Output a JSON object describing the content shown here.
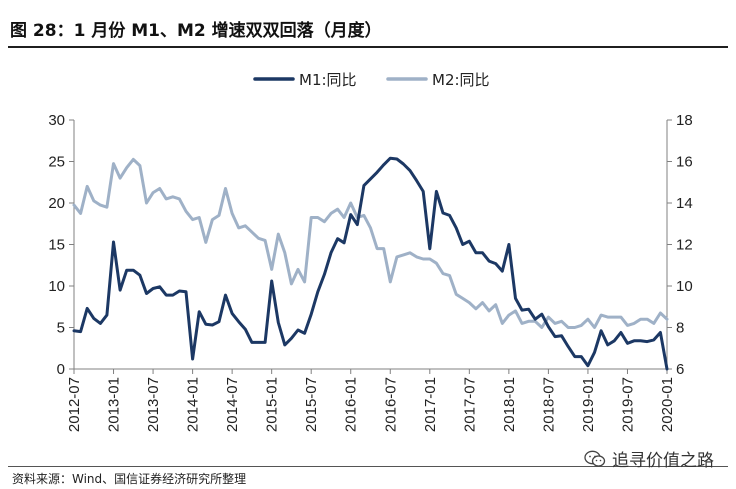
{
  "header": {
    "title": "图 28：1 月份 M1、M2 增速双双回落（月度）"
  },
  "footer": {
    "source": "资料来源：Wind、国信证券经济研究所整理",
    "watermark": "追寻价值之路"
  },
  "colors": {
    "m1": "#1c3864",
    "m2": "#9fb1c7",
    "axis": "#808080"
  },
  "icons": {
    "watermark": "wechat-icon"
  },
  "chart_data": {
    "type": "line",
    "title": "",
    "xlabel": "",
    "ylabel": "",
    "ylabel_right": "",
    "left_axis": {
      "ylim": [
        0,
        30
      ],
      "ticks": [
        0,
        5,
        10,
        15,
        20,
        25,
        30
      ]
    },
    "right_axis": {
      "ylim": [
        6,
        18
      ],
      "ticks": [
        6,
        8,
        10,
        12,
        14,
        16,
        18
      ]
    },
    "x_tick_labels": [
      "2012-07",
      "2013-01",
      "2013-07",
      "2014-01",
      "2014-07",
      "2015-01",
      "2015-07",
      "2016-01",
      "2016-07",
      "2017-01",
      "2017-07",
      "2018-01",
      "2018-07",
      "2019-01",
      "2019-07",
      "2020-01"
    ],
    "grid": false,
    "legend_position": "top-center",
    "x_months": [
      "2012-07",
      "2012-08",
      "2012-09",
      "2012-10",
      "2012-11",
      "2012-12",
      "2013-01",
      "2013-02",
      "2013-03",
      "2013-04",
      "2013-05",
      "2013-06",
      "2013-07",
      "2013-08",
      "2013-09",
      "2013-10",
      "2013-11",
      "2013-12",
      "2014-01",
      "2014-02",
      "2014-03",
      "2014-04",
      "2014-05",
      "2014-06",
      "2014-07",
      "2014-08",
      "2014-09",
      "2014-10",
      "2014-11",
      "2014-12",
      "2015-01",
      "2015-02",
      "2015-03",
      "2015-04",
      "2015-05",
      "2015-06",
      "2015-07",
      "2015-08",
      "2015-09",
      "2015-10",
      "2015-11",
      "2015-12",
      "2016-01",
      "2016-02",
      "2016-03",
      "2016-04",
      "2016-05",
      "2016-06",
      "2016-07",
      "2016-08",
      "2016-09",
      "2016-10",
      "2016-11",
      "2016-12",
      "2017-01",
      "2017-02",
      "2017-03",
      "2017-04",
      "2017-05",
      "2017-06",
      "2017-07",
      "2017-08",
      "2017-09",
      "2017-10",
      "2017-11",
      "2017-12",
      "2018-01",
      "2018-02",
      "2018-03",
      "2018-04",
      "2018-05",
      "2018-06",
      "2018-07",
      "2018-08",
      "2018-09",
      "2018-10",
      "2018-11",
      "2018-12",
      "2019-01",
      "2019-02",
      "2019-03",
      "2019-04",
      "2019-05",
      "2019-06",
      "2019-07",
      "2019-08",
      "2019-09",
      "2019-10",
      "2019-11",
      "2019-12",
      "2020-01"
    ],
    "series": [
      {
        "name": "M1:同比",
        "axis": "left",
        "values": [
          4.6,
          4.5,
          7.3,
          6.1,
          5.5,
          6.5,
          15.3,
          9.5,
          11.9,
          11.9,
          11.3,
          9.1,
          9.7,
          9.9,
          8.9,
          8.9,
          9.4,
          9.3,
          1.2,
          6.9,
          5.4,
          5.3,
          5.7,
          8.9,
          6.7,
          5.7,
          4.8,
          3.2,
          3.2,
          3.2,
          10.6,
          5.6,
          2.9,
          3.7,
          4.7,
          4.3,
          6.6,
          9.3,
          11.4,
          14.0,
          15.7,
          15.2,
          18.6,
          17.4,
          22.1,
          22.9,
          23.7,
          24.6,
          25.4,
          25.3,
          24.7,
          23.9,
          22.7,
          21.4,
          14.5,
          21.4,
          18.8,
          18.5,
          17.0,
          15.0,
          15.4,
          14.0,
          14.0,
          13.0,
          12.7,
          11.8,
          15.0,
          8.5,
          7.1,
          7.2,
          6.0,
          6.6,
          5.1,
          3.9,
          4.0,
          2.7,
          1.5,
          1.5,
          0.4,
          2.0,
          4.6,
          2.9,
          3.4,
          4.4,
          3.1,
          3.4,
          3.4,
          3.3,
          3.5,
          4.4,
          0.0
        ]
      },
      {
        "name": "M2:同比",
        "axis": "right",
        "values": [
          13.9,
          13.5,
          14.8,
          14.1,
          13.9,
          13.8,
          15.9,
          15.2,
          15.7,
          16.1,
          15.8,
          14.0,
          14.5,
          14.7,
          14.2,
          14.3,
          14.2,
          13.6,
          13.2,
          13.3,
          12.1,
          13.2,
          13.4,
          14.7,
          13.5,
          12.8,
          12.9,
          12.6,
          12.3,
          12.2,
          10.8,
          12.5,
          11.6,
          10.1,
          10.8,
          10.2,
          13.3,
          13.3,
          13.1,
          13.5,
          13.7,
          13.3,
          14.0,
          13.3,
          13.4,
          12.8,
          11.8,
          11.8,
          10.2,
          11.4,
          11.5,
          11.6,
          11.4,
          11.3,
          11.3,
          11.1,
          10.6,
          10.5,
          9.6,
          9.4,
          9.2,
          8.9,
          9.2,
          8.8,
          9.1,
          8.2,
          8.6,
          8.8,
          8.2,
          8.3,
          8.3,
          8.0,
          8.5,
          8.2,
          8.3,
          8.0,
          8.0,
          8.1,
          8.4,
          8.0,
          8.6,
          8.5,
          8.5,
          8.5,
          8.1,
          8.2,
          8.4,
          8.4,
          8.2,
          8.7,
          8.4
        ]
      }
    ]
  }
}
